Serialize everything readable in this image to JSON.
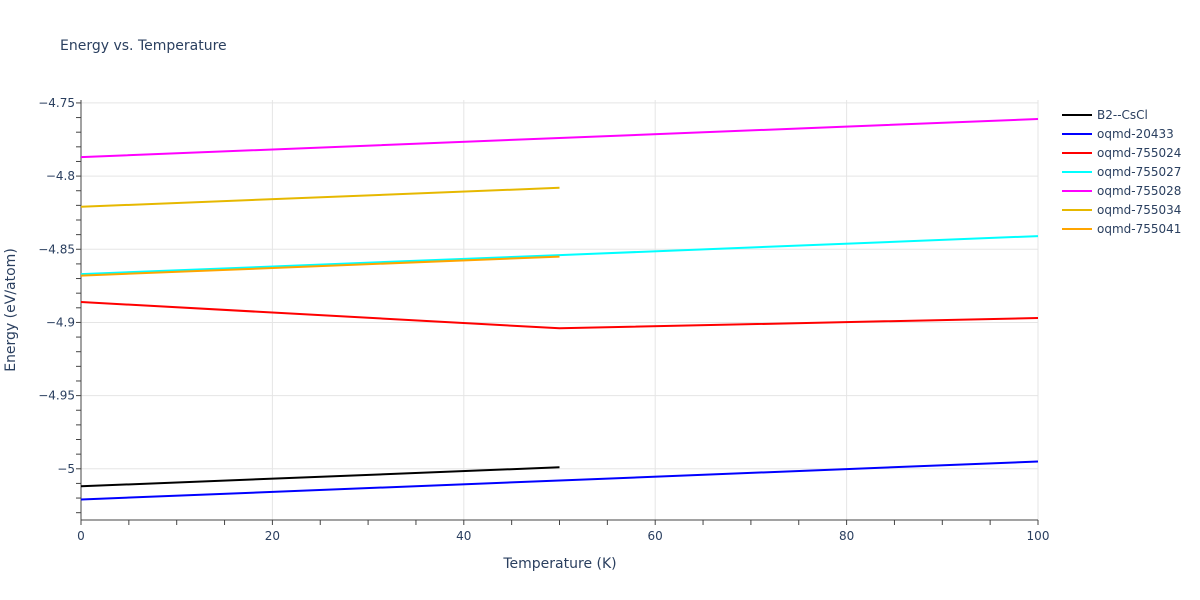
{
  "chart_data": {
    "type": "line",
    "title": "Energy vs. Temperature",
    "xlabel": "Temperature (K)",
    "ylabel": "Energy (eV/atom)",
    "xlim": [
      0,
      100
    ],
    "ylim": [
      -5.035,
      -4.748
    ],
    "x_ticks": [
      0,
      20,
      40,
      60,
      80,
      100
    ],
    "x_tick_labels": [
      "0",
      "20",
      "40",
      "60",
      "80",
      "100"
    ],
    "y_ticks": [
      -5.0,
      -4.95,
      -4.9,
      -4.85,
      -4.8,
      -4.75
    ],
    "y_tick_labels": [
      "−5",
      "−4.95",
      "−4.9",
      "−4.85",
      "−4.8",
      "−4.75"
    ],
    "grid": true,
    "legend_position": "top-right",
    "series": [
      {
        "name": "B2--CsCl",
        "color": "#000000",
        "x": [
          0,
          50
        ],
        "y": [
          -5.012,
          -4.999
        ]
      },
      {
        "name": "oqmd-20433",
        "color": "#0000ff",
        "x": [
          0,
          50,
          100
        ],
        "y": [
          -5.021,
          -5.008,
          -4.995
        ]
      },
      {
        "name": "oqmd-755024",
        "color": "#ff0000",
        "x": [
          0,
          50,
          100
        ],
        "y": [
          -4.886,
          -4.904,
          -4.897
        ]
      },
      {
        "name": "oqmd-755027",
        "color": "#00ffff",
        "x": [
          0,
          50,
          100
        ],
        "y": [
          -4.867,
          -4.854,
          -4.841
        ]
      },
      {
        "name": "oqmd-755028",
        "color": "#ff00ff",
        "x": [
          0,
          50,
          100
        ],
        "y": [
          -4.787,
          -4.774,
          -4.761
        ]
      },
      {
        "name": "oqmd-755034",
        "color": "#e6b800",
        "x": [
          0,
          50
        ],
        "y": [
          -4.821,
          -4.808
        ]
      },
      {
        "name": "oqmd-755041",
        "color": "#ffa500",
        "x": [
          0,
          50
        ],
        "y": [
          -4.868,
          -4.855
        ]
      }
    ]
  }
}
